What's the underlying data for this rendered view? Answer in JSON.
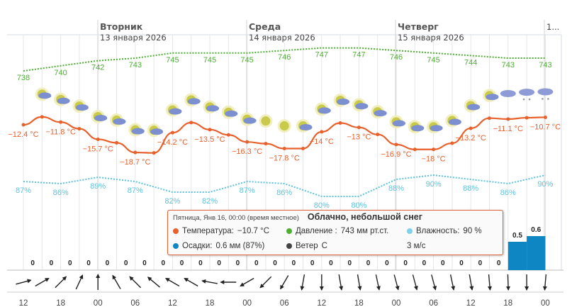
{
  "days": [
    {
      "name": "Вторник",
      "date": "13 января 2026"
    },
    {
      "name": "Среда",
      "date": "14 января 2026"
    },
    {
      "name": "Четверг",
      "date": "15 января 2026"
    },
    {
      "name": "",
      "date": "1..."
    }
  ],
  "tooltip": {
    "header": "Пятница, Янв 16, 00:00 (время местное)",
    "title": "Облачно, небольшой снег",
    "rows": [
      {
        "label": "Температура:",
        "value": "−10.7 °C",
        "color": "#e8602c"
      },
      {
        "label": "Давление :",
        "value": "743 мм рт.ст.",
        "color": "#4caf32"
      },
      {
        "label": "Влажность:",
        "value": "90 %",
        "color": "#7fd0ea"
      },
      {
        "label": "Осадки:",
        "value": "0.6 мм (87%)",
        "color": "#0f86c4"
      },
      {
        "label": "Ветер",
        "value": "С",
        "color": "#444444"
      }
    ],
    "wind_speed": "3 м/с"
  },
  "chart_data": {
    "type": "line",
    "x_labels": [
      "12",
      "18",
      "00",
      "06",
      "12",
      "18",
      "00",
      "06",
      "12",
      "18",
      "00",
      "06",
      "12",
      "18",
      "00"
    ],
    "temperature": {
      "unit": "°C",
      "color": "#e8602c",
      "values": [
        -12.4,
        -10.6,
        -11.8,
        -13.3,
        -15.7,
        -16.5,
        -18.7,
        -18.8,
        -14.2,
        -11.9,
        -13.5,
        -14.7,
        -16.3,
        -16.7,
        -17.8,
        -17.8,
        -14,
        -12.0,
        -13,
        -14.6,
        -16.9,
        -18.0,
        -18,
        -16.6,
        -13.2,
        -10.9,
        -11.1,
        -10.8,
        -10.7
      ]
    },
    "pressure": {
      "unit": "мм рт.ст.",
      "color": "#4caf32",
      "labels": [
        738,
        740,
        742,
        743,
        745,
        745,
        745,
        746,
        747,
        747,
        746,
        745,
        744,
        743,
        743
      ]
    },
    "humidity": {
      "unit": "%",
      "color": "#5bc3dc",
      "labels": [
        87,
        86,
        89,
        87,
        82,
        82,
        87,
        86,
        80,
        80,
        88,
        90,
        88,
        86,
        90
      ]
    },
    "precipitation": {
      "unit": "мм",
      "color": "#0f86c4",
      "values": [
        0,
        0,
        0,
        0,
        0,
        0,
        0,
        0,
        0,
        0,
        0,
        0,
        0,
        0,
        0,
        0,
        0,
        0,
        0,
        0,
        0,
        0,
        0,
        0,
        0,
        0,
        0.5,
        0.6
      ]
    },
    "wind_direction_deg": [
      75,
      60,
      45,
      25,
      0,
      -30,
      -45,
      -50,
      -60,
      -60,
      -80,
      -90,
      -120,
      -135,
      -150,
      -170,
      180,
      170,
      170,
      168,
      165,
      165,
      165,
      168,
      170,
      175,
      178,
      180,
      185
    ],
    "icons": [
      "",
      "pc",
      "pc",
      "pc",
      "pc",
      "pc",
      "pc",
      "pc",
      "pc",
      "pc",
      "pc",
      "pc",
      "pc",
      "sun",
      "sun",
      "pc",
      "pc",
      "pc",
      "pc",
      "pc",
      "pc",
      "pc",
      "pc",
      "pc",
      "pc",
      "pc",
      "cloud",
      "snow",
      "snow"
    ]
  }
}
